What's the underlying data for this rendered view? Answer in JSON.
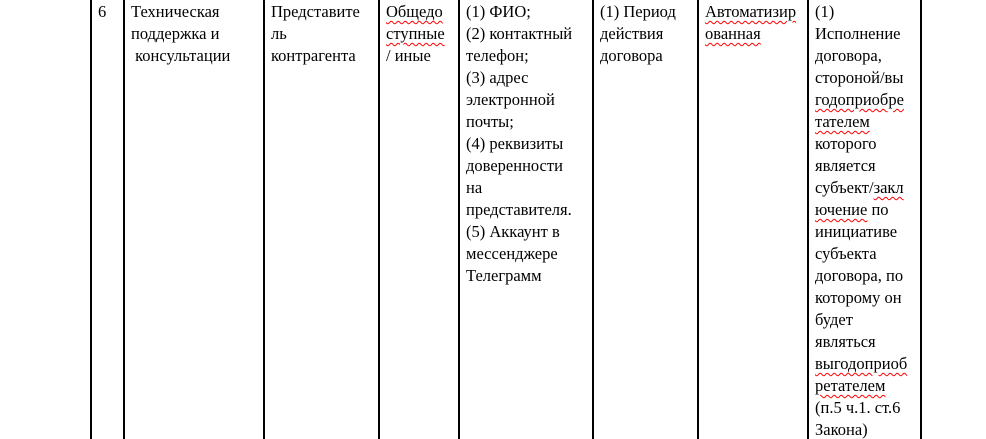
{
  "colors": {
    "background": "#ffffff",
    "text": "#000000",
    "table_border": "#000000",
    "spellcheck_underline": "#ff0000"
  },
  "table": {
    "row": {
      "number": "6",
      "cells": [
        {
          "name": "row-number",
          "lines": [
            [
              {
                "text": "6"
              }
            ]
          ]
        },
        {
          "name": "process-name",
          "lines": [
            [
              {
                "text": "Техническая"
              }
            ],
            [
              {
                "text": "поддержка и"
              }
            ],
            [
              {
                "text": " консультации"
              }
            ]
          ]
        },
        {
          "name": "data-subject",
          "lines": [
            [
              {
                "text": "Представите"
              }
            ],
            [
              {
                "text": "ль"
              }
            ],
            [
              {
                "text": "контрагента"
              }
            ]
          ]
        },
        {
          "name": "data-category",
          "lines": [
            [
              {
                "text": "Общедо",
                "misspelled": true
              }
            ],
            [
              {
                "text": "ступные",
                "misspelled": true
              }
            ],
            [
              {
                "text": "/ иные"
              }
            ]
          ]
        },
        {
          "name": "personal-data-list",
          "lines": [
            [
              {
                "text": "(1) ФИО;"
              }
            ],
            [
              {
                "text": "(2) контактный"
              }
            ],
            [
              {
                "text": "телефон;"
              }
            ],
            [
              {
                "text": "(3) адрес"
              }
            ],
            [
              {
                "text": "электронной"
              }
            ],
            [
              {
                "text": "почты;"
              }
            ],
            [
              {
                "text": "(4) реквизиты"
              }
            ],
            [
              {
                "text": "доверенности"
              }
            ],
            [
              {
                "text": "на"
              }
            ],
            [
              {
                "text": "представителя."
              }
            ],
            [
              {
                "text": "(5) Аккаунт в"
              }
            ],
            [
              {
                "text": "мессенджере"
              }
            ],
            [
              {
                "text": "Телеграмм"
              }
            ]
          ]
        },
        {
          "name": "storage-term",
          "lines": [
            [
              {
                "text": "(1) Период"
              }
            ],
            [
              {
                "text": "действия"
              }
            ],
            [
              {
                "text": "договора"
              }
            ]
          ]
        },
        {
          "name": "processing-type",
          "lines": [
            [
              {
                "text": "Автоматизир",
                "misspelled": true
              }
            ],
            [
              {
                "text": "ованная",
                "misspelled": true
              }
            ]
          ]
        },
        {
          "name": "legal-basis",
          "lines": [
            [
              {
                "text": "(1)"
              }
            ],
            [
              {
                "text": "Исполнение"
              }
            ],
            [
              {
                "text": "договора,"
              }
            ],
            [
              {
                "text": "стороной/вы"
              }
            ],
            [
              {
                "text": "годоприобре",
                "misspelled": true
              }
            ],
            [
              {
                "text": "тателем",
                "misspelled": true
              }
            ],
            [
              {
                "text": "которого"
              }
            ],
            [
              {
                "text": "является"
              }
            ],
            [
              {
                "text": "субъект/"
              },
              {
                "text": "закл",
                "misspelled": true
              }
            ],
            [
              {
                "text": "ючение",
                "misspelled": true
              },
              {
                "text": " по"
              }
            ],
            [
              {
                "text": "инициативе"
              }
            ],
            [
              {
                "text": "субъекта"
              }
            ],
            [
              {
                "text": "договора, по"
              }
            ],
            [
              {
                "text": "которому он"
              }
            ],
            [
              {
                "text": "будет"
              }
            ],
            [
              {
                "text": "являться"
              }
            ],
            [
              {
                "text": "выгодоприоб",
                "misspelled": true
              }
            ],
            [
              {
                "text": "ретателем",
                "misspelled": true
              }
            ],
            [
              {
                "text": "(п.5 ч.1. ст.6"
              }
            ],
            [
              {
                "text": "Закона)"
              }
            ]
          ]
        }
      ]
    }
  }
}
